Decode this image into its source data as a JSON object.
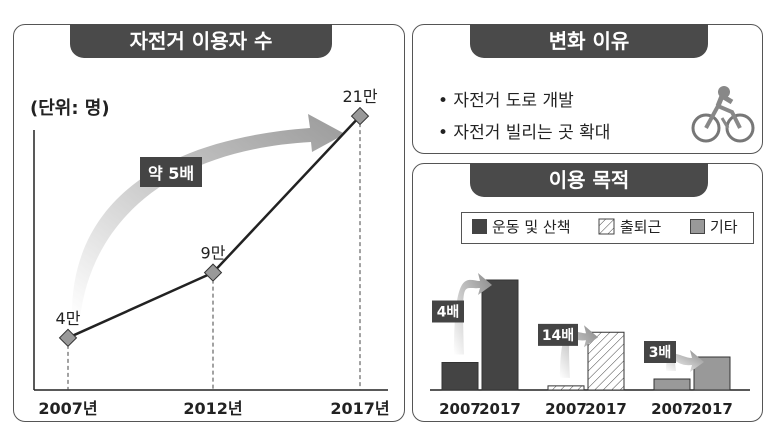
{
  "left_panel": {
    "title": "자전거 이용자 수",
    "unit_label": "(단위: 명)",
    "arrow_label": "약 5배"
  },
  "right_top": {
    "title": "변화 이유",
    "reasons": [
      "• 자전거 도로 개발",
      "• 자전거 빌리는 곳 확대"
    ],
    "icon": "cyclist-icon"
  },
  "right_bottom": {
    "title": "이용 목적",
    "legend": [
      "운동 및 산책",
      "출퇴근",
      "기타"
    ]
  },
  "chart_data": [
    {
      "type": "line",
      "title": "자전거 이용자 수",
      "ylabel": "(단위: 명)",
      "categories": [
        "2007년",
        "2012년",
        "2017년"
      ],
      "values": [
        40000,
        90000,
        210000
      ],
      "data_labels": [
        "4만",
        "9만",
        "21만"
      ],
      "annotation": "약 5배",
      "ylim": [
        0,
        230000
      ]
    },
    {
      "type": "bar",
      "title": "이용 목적",
      "groups": [
        {
          "name": "운동 및 산책",
          "categories": [
            "2007",
            "2017"
          ],
          "values": [
            1,
            4
          ],
          "ratio_label": "4배",
          "color": "#444444",
          "pattern": "solid"
        },
        {
          "name": "출퇴근",
          "categories": [
            "2007",
            "2017"
          ],
          "values": [
            0.15,
            2.1
          ],
          "ratio_label": "14배",
          "color": "#ffffff",
          "pattern": "hatch"
        },
        {
          "name": "기타",
          "categories": [
            "2007",
            "2017"
          ],
          "values": [
            0.4,
            1.2
          ],
          "ratio_label": "3배",
          "color": "#999999",
          "pattern": "solid"
        }
      ],
      "ylim": [
        0,
        5
      ],
      "grid": false
    }
  ],
  "colors": {
    "dark": "#4a4a4a",
    "marker": "#999999",
    "arrow": "#bbbbbb"
  }
}
